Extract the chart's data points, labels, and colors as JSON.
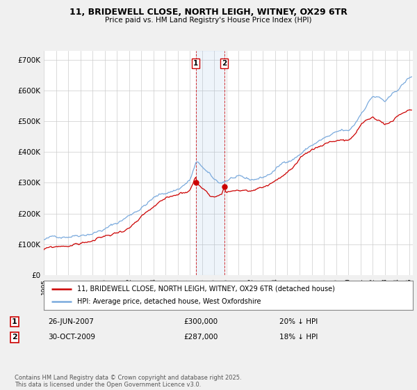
{
  "title": "11, BRIDEWELL CLOSE, NORTH LEIGH, WITNEY, OX29 6TR",
  "subtitle": "Price paid vs. HM Land Registry's House Price Index (HPI)",
  "legend_line1": "11, BRIDEWELL CLOSE, NORTH LEIGH, WITNEY, OX29 6TR (detached house)",
  "legend_line2": "HPI: Average price, detached house, West Oxfordshire",
  "footer": "Contains HM Land Registry data © Crown copyright and database right 2025.\nThis data is licensed under the Open Government Licence v3.0.",
  "transaction1_label": "1",
  "transaction1_date": "26-JUN-2007",
  "transaction1_price": "£300,000",
  "transaction1_hpi": "20% ↓ HPI",
  "transaction2_label": "2",
  "transaction2_date": "30-OCT-2009",
  "transaction2_price": "£287,000",
  "transaction2_hpi": "18% ↓ HPI",
  "sale_color": "#cc0000",
  "hpi_color": "#7aaadd",
  "background_color": "#f0f0f0",
  "plot_bg_color": "#ffffff",
  "grid_color": "#cccccc",
  "ylim": [
    0,
    730000
  ],
  "yticks": [
    0,
    100000,
    200000,
    300000,
    400000,
    500000,
    600000,
    700000
  ],
  "ytick_labels": [
    "£0",
    "£100K",
    "£200K",
    "£300K",
    "£400K",
    "£500K",
    "£600K",
    "£700K"
  ],
  "vline1_x": 2007.48,
  "vline2_x": 2009.83,
  "sale1_x": 2007.48,
  "sale1_y": 300000,
  "sale2_x": 2009.83,
  "sale2_y": 287000,
  "xlim_left": 1995.0,
  "xlim_right": 2025.3
}
